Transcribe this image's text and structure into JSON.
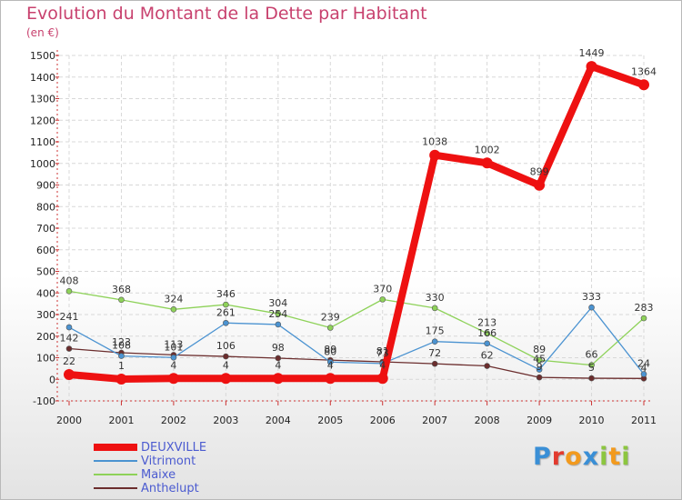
{
  "title": "Evolution du Montant de la Dette par Habitant",
  "subtitle": "(en €)",
  "logo": {
    "text": "Proxiti",
    "letter_colors": [
      "#3a8fd6",
      "#e23a2e",
      "#f29a1e",
      "#3a8fd6",
      "#8cc63f",
      "#f29a1e",
      "#8cc63f"
    ]
  },
  "chart_data": {
    "type": "line",
    "x": [
      "2000",
      "2001",
      "2002",
      "2003",
      "2004",
      "2005",
      "2006",
      "2007",
      "2008",
      "2009",
      "2010",
      "2011"
    ],
    "ylim": [
      -100,
      1500
    ],
    "yticks": [
      -100,
      0,
      100,
      200,
      300,
      400,
      500,
      600,
      700,
      800,
      900,
      1000,
      1100,
      1200,
      1300,
      1400,
      1500
    ],
    "grid": true,
    "legend_position": "bottom-left",
    "series": [
      {
        "name": "DEUXVILLE",
        "color": "#ee1111",
        "emphasis": true,
        "values": [
          22,
          1,
          4,
          4,
          4,
          4,
          4,
          1038,
          1002,
          899,
          1449,
          1364
        ],
        "labels": [
          "22",
          "1",
          "4",
          "4",
          "4",
          "4",
          "4",
          "1038",
          "1002",
          "899",
          "1449",
          "1364"
        ]
      },
      {
        "name": "Vitrimont",
        "color": "#4b93d1",
        "values": [
          241,
          108,
          101,
          261,
          254,
          80,
          73,
          175,
          166,
          45,
          333,
          24
        ],
        "labels": [
          "241",
          "108",
          "101",
          "261",
          "254",
          "80",
          "73",
          "175",
          "166",
          "45",
          "333",
          "24"
        ]
      },
      {
        "name": "Maixe",
        "color": "#8ed259",
        "values": [
          408,
          368,
          324,
          346,
          304,
          239,
          370,
          330,
          213,
          89,
          66,
          283
        ],
        "labels": [
          "408",
          "368",
          "324",
          "346",
          "304",
          "239",
          "370",
          "330",
          "213",
          "89",
          "66",
          "283"
        ]
      },
      {
        "name": "Anthelupt",
        "color": "#6b2d2d",
        "values": [
          142,
          123,
          113,
          106,
          98,
          89,
          81,
          72,
          62,
          9,
          5,
          4
        ],
        "labels": [
          "142",
          "123",
          "113",
          "106",
          "98",
          "89",
          "81",
          "72",
          "62",
          "9",
          "5",
          "4"
        ]
      }
    ]
  }
}
